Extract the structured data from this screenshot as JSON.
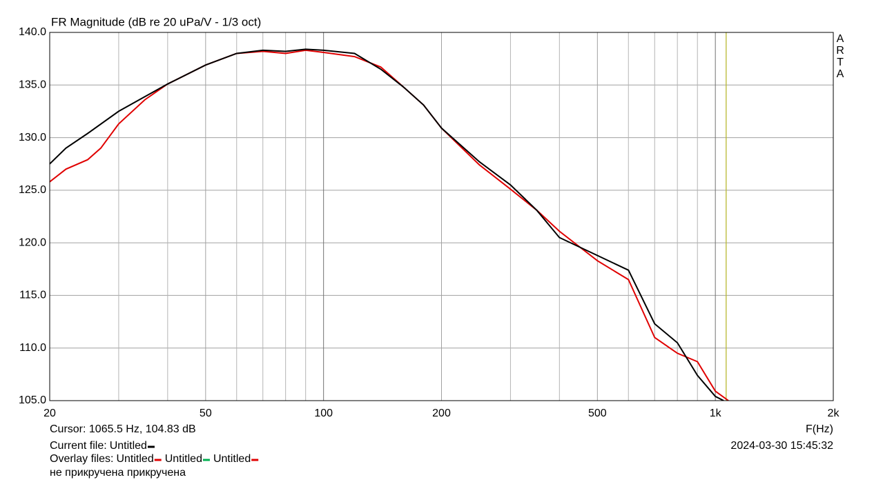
{
  "chart_data": {
    "type": "line",
    "title": "FR Magnitude (dB re 20 uPa/V - 1/3 oct)",
    "x_label": "F(Hz)",
    "log_x": true,
    "grid": true,
    "xlim": [
      20,
      2000
    ],
    "ylim": [
      105,
      140
    ],
    "xticks": [
      20,
      50,
      100,
      200,
      500,
      {
        "value": 1000,
        "label": "1k"
      },
      {
        "value": 2000,
        "label": "2k"
      }
    ],
    "xminor_ticks": [
      30,
      40,
      60,
      70,
      80,
      90,
      300,
      400,
      600,
      700,
      800,
      900
    ],
    "yticks": [
      {
        "value": 105,
        "label": "105.0"
      },
      {
        "value": 110,
        "label": "110.0"
      },
      {
        "value": 115,
        "label": "115.0"
      },
      {
        "value": 120,
        "label": "120.0"
      },
      {
        "value": 125,
        "label": "125.0"
      },
      {
        "value": 130,
        "label": "130.0"
      },
      {
        "value": 135,
        "label": "135.0"
      },
      {
        "value": 140,
        "label": "140.0"
      }
    ],
    "series": [
      {
        "name": "Untitled",
        "color": "#000000",
        "x": [
          20,
          22,
          25,
          30,
          35,
          40,
          50,
          60,
          70,
          80,
          90,
          100,
          120,
          140,
          160,
          180,
          200,
          250,
          300,
          350,
          400,
          500,
          600,
          700,
          800,
          900,
          1000,
          1050
        ],
        "values": [
          127.5,
          129.0,
          130.4,
          132.5,
          133.9,
          135.1,
          136.9,
          138.0,
          138.3,
          138.2,
          138.4,
          138.3,
          138.0,
          136.5,
          134.8,
          133.1,
          130.9,
          127.7,
          125.5,
          123.1,
          120.5,
          118.8,
          117.4,
          112.3,
          110.5,
          107.4,
          105.4,
          105.0
        ]
      },
      {
        "name": "Untitled",
        "color": "#e00000",
        "x": [
          20,
          22,
          25,
          27,
          30,
          35,
          40,
          50,
          60,
          70,
          80,
          90,
          100,
          120,
          140,
          160,
          180,
          200,
          250,
          300,
          350,
          400,
          500,
          600,
          700,
          800,
          900,
          1000,
          1080
        ],
        "values": [
          125.8,
          127.0,
          127.9,
          129.0,
          131.3,
          133.6,
          135.1,
          136.9,
          138.0,
          138.2,
          138.0,
          138.3,
          138.1,
          137.7,
          136.7,
          134.8,
          133.1,
          130.9,
          127.4,
          125.1,
          123.1,
          121.1,
          118.3,
          116.5,
          111.0,
          109.5,
          108.7,
          105.9,
          105.0
        ]
      }
    ],
    "cursor_x": 1065.5,
    "cursor_color": "#b8b830",
    "watermark": [
      "A",
      "R",
      "T",
      "A"
    ],
    "cursor_text": "Cursor: 1065.5 Hz, 104.83 dB",
    "current_file_label": "Current file:",
    "overlay_files_label": "Overlay files:",
    "extra_overlays": [
      {
        "name": "Untitled",
        "color": "#00b050"
      },
      {
        "name": "Untitled",
        "color": "#e00000"
      }
    ],
    "timestamp": "2024-03-30  15:45:32",
    "note": "не прикручена прикручена"
  }
}
